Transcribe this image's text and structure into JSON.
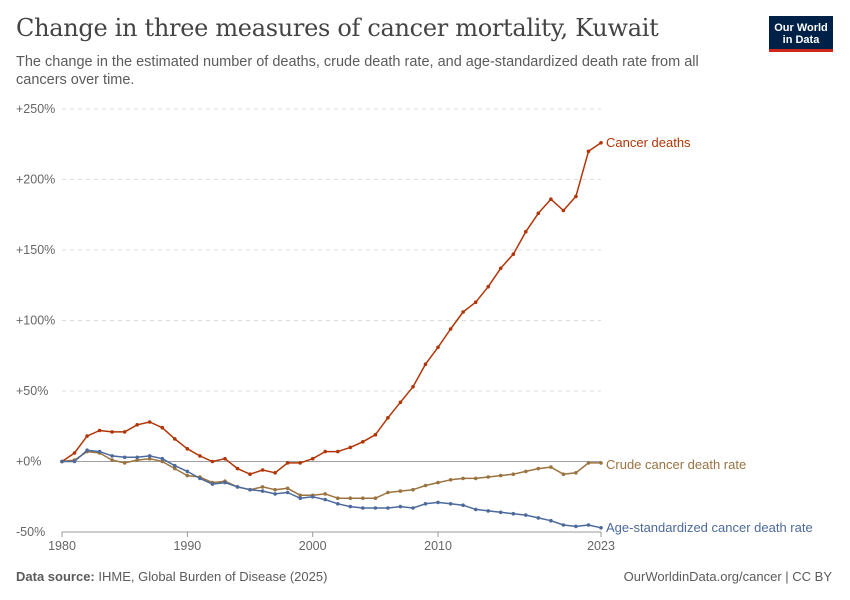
{
  "header": {
    "title": "Change in three measures of cancer mortality, Kuwait",
    "subtitle": "The change in the estimated number of deaths, crude death rate, and age-standardized death rate from all cancers over time.",
    "logo_line1": "Our World",
    "logo_line2": "in Data"
  },
  "footer": {
    "source_label": "Data source:",
    "source_text": "IHME, Global Burden of Disease (2025)",
    "url_license": "OurWorldinData.org/cancer | CC BY"
  },
  "colors": {
    "cancer_deaths": "#b13507",
    "crude_rate": "#9a7340",
    "age_standardized": "#4c6a9c",
    "grid": "#dddddd",
    "zero_line": "#a0a0a0",
    "axis_text": "#666666"
  },
  "chart_data": {
    "type": "line",
    "title": "Change in three measures of cancer mortality, Kuwait",
    "xlabel": "",
    "ylabel": "",
    "x": [
      1980,
      1981,
      1982,
      1983,
      1984,
      1985,
      1986,
      1987,
      1988,
      1989,
      1990,
      1991,
      1992,
      1993,
      1994,
      1995,
      1996,
      1997,
      1998,
      1999,
      2000,
      2001,
      2002,
      2003,
      2004,
      2005,
      2006,
      2007,
      2008,
      2009,
      2010,
      2011,
      2012,
      2013,
      2014,
      2015,
      2016,
      2017,
      2018,
      2019,
      2020,
      2021,
      2022,
      2023
    ],
    "xlim": [
      1980,
      2023
    ],
    "ylim": [
      -50,
      250
    ],
    "x_ticks": [
      "1980",
      "1990",
      "2000",
      "2010",
      "2023"
    ],
    "x_tick_values": [
      1980,
      1990,
      2000,
      2010,
      2023
    ],
    "y_ticks": [
      "-50%",
      "+0%",
      "+50%",
      "+100%",
      "+150%",
      "+200%",
      "+250%"
    ],
    "y_tick_values": [
      -50,
      0,
      50,
      100,
      150,
      200,
      250
    ],
    "grid": "horizontal dashed",
    "legend": "inline labels at line ends",
    "series": [
      {
        "name": "Cancer deaths",
        "values": [
          0,
          6,
          18,
          22,
          21,
          21,
          26,
          28,
          24,
          16,
          9,
          4,
          0,
          2,
          -5,
          -9,
          -6,
          -8,
          -1,
          -1,
          2,
          7,
          7,
          10,
          14,
          19,
          31,
          42,
          53,
          69,
          81,
          94,
          106,
          113,
          124,
          137,
          147,
          163,
          176,
          186,
          178,
          188,
          220,
          226
        ]
      },
      {
        "name": "Crude cancer death rate",
        "values": [
          0,
          1,
          7,
          6,
          1,
          -1,
          1,
          2,
          0,
          -5,
          -10,
          -11,
          -15,
          -14,
          -18,
          -20,
          -18,
          -20,
          -19,
          -24,
          -24,
          -23,
          -26,
          -26,
          -26,
          -26,
          -22,
          -21,
          -20,
          -17,
          -15,
          -13,
          -12,
          -12,
          -11,
          -10,
          -9,
          -7,
          -5,
          -4,
          -9,
          -8,
          -1,
          -1
        ]
      },
      {
        "name": "Age-standardized cancer death rate",
        "values": [
          0,
          0,
          8,
          7,
          4,
          3,
          3,
          4,
          2,
          -3,
          -7,
          -12,
          -16,
          -15,
          -18,
          -20,
          -21,
          -23,
          -22,
          -26,
          -25,
          -27,
          -30,
          -32,
          -33,
          -33,
          -33,
          -32,
          -33,
          -30,
          -29,
          -30,
          -31,
          -34,
          -35,
          -36,
          -37,
          -38,
          -40,
          -42,
          -45,
          -46,
          -45,
          -47
        ]
      }
    ]
  }
}
